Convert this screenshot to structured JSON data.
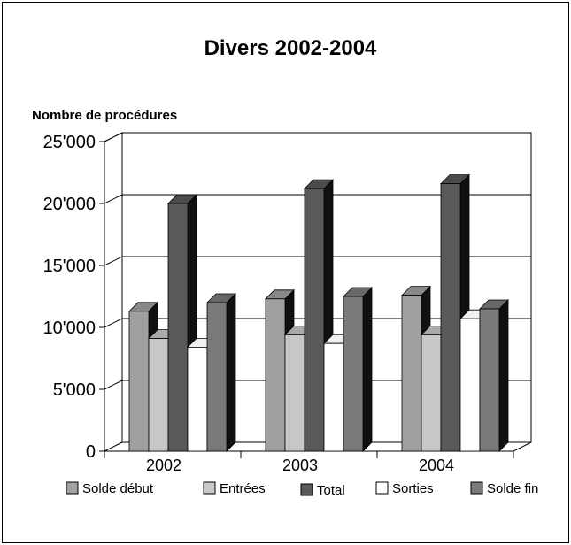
{
  "chart_data": {
    "type": "bar",
    "title": "Divers 2002-2004",
    "ylabel": "Nombre de procédures",
    "xlabel": "",
    "ylim": [
      0,
      25000
    ],
    "yticks": [
      0,
      5000,
      10000,
      15000,
      20000,
      25000
    ],
    "ytick_labels": [
      "0",
      "5'000",
      "10'000",
      "15'000",
      "20'000",
      "25'000"
    ],
    "categories": [
      "2002",
      "2003",
      "2004"
    ],
    "series": [
      {
        "name": "Solde début",
        "values": [
          11300,
          12300,
          12600
        ],
        "color": "#a0a0a0"
      },
      {
        "name": "Entrées",
        "values": [
          9100,
          9400,
          9400
        ],
        "color": "#c8c8c8"
      },
      {
        "name": "Total",
        "values": [
          20000,
          21200,
          21600
        ],
        "color": "#595959"
      },
      {
        "name": "Sorties",
        "values": [
          8400,
          8700,
          10700
        ],
        "color": "#ffffff"
      },
      {
        "name": "Solde fin",
        "values": [
          12000,
          12500,
          11500
        ],
        "color": "#7a7a7a"
      }
    ],
    "grid": true,
    "legend_position": "bottom",
    "three_d": true
  }
}
